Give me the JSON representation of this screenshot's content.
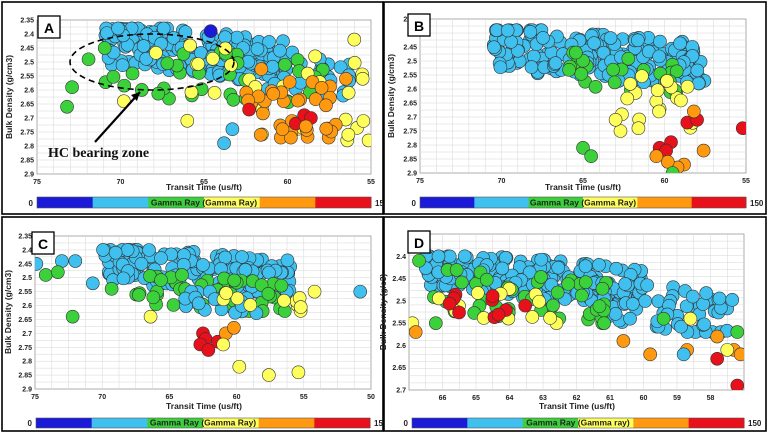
{
  "colors": {
    "red": "#e8101a",
    "orange": "#ff9a10",
    "yellow": "#ffff5c",
    "green": "#3ad13a",
    "cyan": "#3fc0ee",
    "blue": "#1a1ad8"
  },
  "colorbar": {
    "min": "0",
    "max": "150",
    "segments": [
      "blue",
      "cyan",
      "green",
      "yellow",
      "orange",
      "red"
    ],
    "label_prefix": "Gamma Ray",
    "labels": [
      "Gamma Ray (Gamma Ray)",
      "Gamma Ray (Gamma Ray)",
      "Gamma Ray (Gamma Ray)",
      "Gamma Ray (Gamma ray)"
    ]
  },
  "annotation": {
    "text": "HC bearing zone"
  },
  "chart_data": [
    {
      "panel": "A",
      "type": "scatter",
      "xlabel": "Transit Time (us/ft)",
      "ylabel": "Bulk Density (g/cm3)",
      "xlim": [
        75,
        55
      ],
      "ylim": [
        2.35,
        2.9
      ],
      "xticks": [
        "75",
        "70",
        "65",
        "60",
        "55"
      ],
      "yticks": [
        "2.35",
        "2.4",
        "2.45",
        "2.5",
        "2.55",
        "2.6",
        "2.65",
        "2.7",
        "2.75",
        "2.8",
        "2.85",
        "2.9"
      ],
      "clusters": [
        {
          "color": "cyan",
          "x": [
            71,
            60
          ],
          "y": [
            2.38,
            2.55
          ],
          "n": 200
        },
        {
          "color": "cyan",
          "x": [
            64,
            56
          ],
          "y": [
            2.45,
            2.62
          ],
          "n": 40
        },
        {
          "color": "green",
          "x": [
            72,
            57
          ],
          "y": [
            2.45,
            2.66
          ],
          "n": 35
        },
        {
          "color": "yellow",
          "x": [
            68,
            55
          ],
          "y": [
            2.42,
            2.78
          ],
          "n": 30
        },
        {
          "color": "orange",
          "x": [
            63,
            57
          ],
          "y": [
            2.52,
            2.77
          ],
          "n": 30
        }
      ],
      "points": [
        {
          "color": "cyan",
          "x": 63.8,
          "y": 2.79
        },
        {
          "color": "cyan",
          "x": 63.3,
          "y": 2.74
        },
        {
          "color": "yellow",
          "x": 69.8,
          "y": 2.64
        },
        {
          "color": "yellow",
          "x": 66,
          "y": 2.71
        },
        {
          "color": "green",
          "x": 73.2,
          "y": 2.66
        },
        {
          "color": "green",
          "x": 72.9,
          "y": 2.59
        },
        {
          "color": "red",
          "x": 59.5,
          "y": 2.72
        },
        {
          "color": "red",
          "x": 59,
          "y": 2.69
        },
        {
          "color": "red",
          "x": 58.6,
          "y": 2.7
        },
        {
          "color": "red",
          "x": 62.3,
          "y": 2.67
        },
        {
          "color": "orange",
          "x": 60.4,
          "y": 2.77
        },
        {
          "color": "orange",
          "x": 59.8,
          "y": 2.77
        },
        {
          "color": "orange",
          "x": 61.6,
          "y": 2.76
        },
        {
          "color": "orange",
          "x": 60.3,
          "y": 2.74
        },
        {
          "color": "orange",
          "x": 58.9,
          "y": 2.73
        },
        {
          "color": "orange",
          "x": 56.5,
          "y": 2.56
        },
        {
          "color": "yellow",
          "x": 56,
          "y": 2.42
        },
        {
          "color": "yellow",
          "x": 55.5,
          "y": 2.56
        },
        {
          "color": "blue",
          "x": 64.6,
          "y": 2.39
        }
      ]
    },
    {
      "panel": "B",
      "type": "scatter",
      "xlabel": "Transit Time (us/ft)",
      "ylabel": "Bulk Density (g/cm3)",
      "xlim": [
        75,
        55
      ],
      "ylim": [
        2.35,
        2.9
      ],
      "xticks": [
        "75",
        "70",
        "65",
        "60",
        "55"
      ],
      "yticks": [
        "2.35",
        "2.4",
        "2.45",
        "2.5",
        "2.55",
        "2.6",
        "2.65",
        "2.7",
        "2.75",
        "2.8",
        "2.85",
        "2.9"
      ],
      "clusters": [
        {
          "color": "cyan",
          "x": [
            70.5,
            57.5
          ],
          "y": [
            2.39,
            2.58
          ],
          "n": 220
        },
        {
          "color": "green",
          "x": [
            66,
            59
          ],
          "y": [
            2.47,
            2.62
          ],
          "n": 25
        },
        {
          "color": "yellow",
          "x": [
            63,
            58
          ],
          "y": [
            2.55,
            2.75
          ],
          "n": 18
        }
      ],
      "points": [
        {
          "color": "green",
          "x": 65,
          "y": 2.81
        },
        {
          "color": "green",
          "x": 64.5,
          "y": 2.84
        },
        {
          "color": "yellow",
          "x": 62.7,
          "y": 2.75
        },
        {
          "color": "yellow",
          "x": 61.6,
          "y": 2.74
        },
        {
          "color": "yellow",
          "x": 63,
          "y": 2.71
        },
        {
          "color": "red",
          "x": 59.6,
          "y": 2.79
        },
        {
          "color": "red",
          "x": 60.3,
          "y": 2.81
        },
        {
          "color": "red",
          "x": 59.9,
          "y": 2.82
        },
        {
          "color": "red",
          "x": 58.6,
          "y": 2.72
        },
        {
          "color": "red",
          "x": 58,
          "y": 2.71
        },
        {
          "color": "red",
          "x": 55.2,
          "y": 2.74
        },
        {
          "color": "orange",
          "x": 58.8,
          "y": 2.87
        },
        {
          "color": "orange",
          "x": 59.2,
          "y": 2.88
        },
        {
          "color": "orange",
          "x": 59.8,
          "y": 2.86
        },
        {
          "color": "orange",
          "x": 60.5,
          "y": 2.84
        },
        {
          "color": "orange",
          "x": 57.6,
          "y": 2.82
        },
        {
          "color": "orange",
          "x": 58.2,
          "y": 2.68
        },
        {
          "color": "green",
          "x": 59.5,
          "y": 2.9
        }
      ]
    },
    {
      "panel": "C",
      "type": "scatter",
      "xlabel": "Transit Time (us/ft)",
      "ylabel": "Bulk Density (g/cm3)",
      "xlim": [
        75,
        50
      ],
      "ylim": [
        2.35,
        2.9
      ],
      "xticks": [
        "75",
        "70",
        "65",
        "60",
        "55",
        "50"
      ],
      "yticks": [
        "2.35",
        "2.4",
        "2.45",
        "2.5",
        "2.55",
        "2.6",
        "2.65",
        "2.7",
        "2.75",
        "2.8",
        "2.85",
        "2.9"
      ],
      "clusters": [
        {
          "color": "cyan",
          "x": [
            70,
            56
          ],
          "y": [
            2.4,
            2.55
          ],
          "n": 180
        },
        {
          "color": "green",
          "x": [
            68,
            56
          ],
          "y": [
            2.49,
            2.62
          ],
          "n": 45
        },
        {
          "color": "cyan",
          "x": [
            64,
            58
          ],
          "y": [
            2.55,
            2.63
          ],
          "n": 20
        },
        {
          "color": "yellow",
          "x": [
            63,
            55
          ],
          "y": [
            2.55,
            2.62
          ],
          "n": 10
        }
      ],
      "points": [
        {
          "color": "cyan",
          "x": 74.9,
          "y": 2.45
        },
        {
          "color": "cyan",
          "x": 73,
          "y": 2.44
        },
        {
          "color": "cyan",
          "x": 72,
          "y": 2.44
        },
        {
          "color": "cyan",
          "x": 70.7,
          "y": 2.52
        },
        {
          "color": "cyan",
          "x": 50.8,
          "y": 2.55
        },
        {
          "color": "cyan",
          "x": 69,
          "y": 2.41
        },
        {
          "color": "green",
          "x": 74.2,
          "y": 2.49
        },
        {
          "color": "green",
          "x": 73.3,
          "y": 2.48
        },
        {
          "color": "green",
          "x": 72.2,
          "y": 2.64
        },
        {
          "color": "green",
          "x": 69.3,
          "y": 2.54
        },
        {
          "color": "yellow",
          "x": 66.4,
          "y": 2.64
        },
        {
          "color": "yellow",
          "x": 54.2,
          "y": 2.55
        },
        {
          "color": "red",
          "x": 62.5,
          "y": 2.7
        },
        {
          "color": "red",
          "x": 62.3,
          "y": 2.72
        },
        {
          "color": "red",
          "x": 62.7,
          "y": 2.74
        },
        {
          "color": "red",
          "x": 61.4,
          "y": 2.73
        },
        {
          "color": "red",
          "x": 62.1,
          "y": 2.76
        },
        {
          "color": "orange",
          "x": 60.8,
          "y": 2.7
        },
        {
          "color": "orange",
          "x": 60.2,
          "y": 2.68
        },
        {
          "color": "yellow",
          "x": 61,
          "y": 2.74
        },
        {
          "color": "yellow",
          "x": 59.8,
          "y": 2.82
        },
        {
          "color": "yellow",
          "x": 57.6,
          "y": 2.85
        },
        {
          "color": "yellow",
          "x": 55.4,
          "y": 2.84
        }
      ]
    },
    {
      "panel": "D",
      "type": "scatter",
      "xlabel": "Transit Time (us/ft)",
      "ylabel": "Bulk Density (g/c3)",
      "xlim": [
        67,
        57
      ],
      "ylim": [
        2.35,
        2.7
      ],
      "xticks": [
        "66",
        "65",
        "64",
        "63",
        "62",
        "61",
        "60",
        "59",
        "58"
      ],
      "yticks": [
        "2.4",
        "2.45",
        "2.5",
        "2.55",
        "2.6",
        "2.65",
        "2.7"
      ],
      "clusters": [
        {
          "color": "cyan",
          "x": [
            66.5,
            60
          ],
          "y": [
            2.4,
            2.5
          ],
          "n": 210
        },
        {
          "color": "cyan",
          "x": [
            61.5,
            57.3
          ],
          "y": [
            2.46,
            2.57
          ],
          "n": 70
        },
        {
          "color": "green",
          "x": [
            66.3,
            61
          ],
          "y": [
            2.43,
            2.55
          ],
          "n": 45
        },
        {
          "color": "yellow",
          "x": [
            66.5,
            62
          ],
          "y": [
            2.46,
            2.55
          ],
          "n": 14
        },
        {
          "color": "red",
          "x": [
            66,
            63
          ],
          "y": [
            2.47,
            2.54
          ],
          "n": 10
        }
      ],
      "points": [
        {
          "color": "green",
          "x": 66.7,
          "y": 2.41
        },
        {
          "color": "yellow",
          "x": 66.9,
          "y": 2.55
        },
        {
          "color": "orange",
          "x": 66.8,
          "y": 2.57
        },
        {
          "color": "green",
          "x": 66.2,
          "y": 2.55
        },
        {
          "color": "orange",
          "x": 60.6,
          "y": 2.59
        },
        {
          "color": "orange",
          "x": 59.8,
          "y": 2.62
        },
        {
          "color": "orange",
          "x": 58.7,
          "y": 2.61
        },
        {
          "color": "orange",
          "x": 57.8,
          "y": 2.58
        },
        {
          "color": "orange",
          "x": 57.3,
          "y": 2.61
        },
        {
          "color": "orange",
          "x": 57.1,
          "y": 2.62
        },
        {
          "color": "yellow",
          "x": 57.5,
          "y": 2.61
        },
        {
          "color": "yellow",
          "x": 58.6,
          "y": 2.54
        },
        {
          "color": "red",
          "x": 57.8,
          "y": 2.63
        },
        {
          "color": "red",
          "x": 57.2,
          "y": 2.69
        },
        {
          "color": "green",
          "x": 57.2,
          "y": 2.57
        },
        {
          "color": "green",
          "x": 59.4,
          "y": 2.54
        },
        {
          "color": "cyan",
          "x": 58.8,
          "y": 2.62
        },
        {
          "color": "cyan",
          "x": 60.4,
          "y": 2.54
        }
      ]
    }
  ]
}
